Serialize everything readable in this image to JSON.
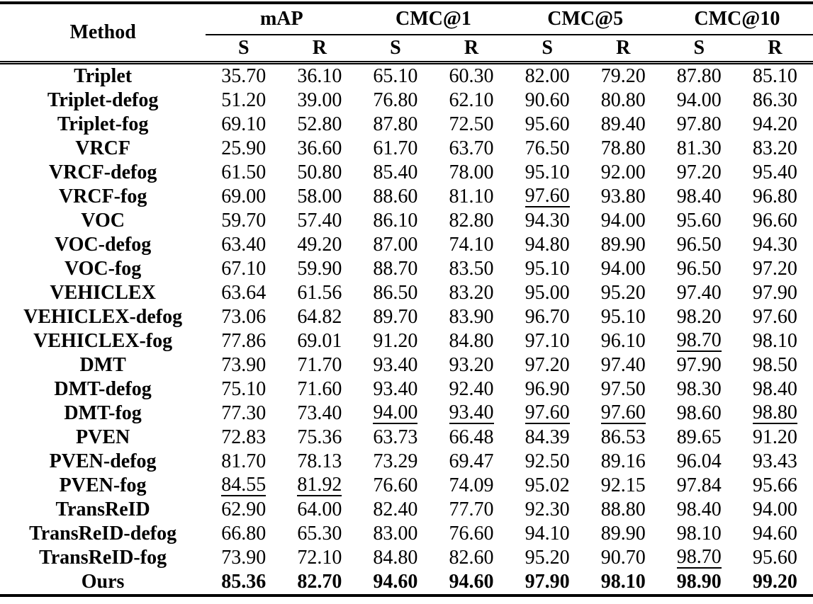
{
  "table": {
    "method_header": "Method",
    "groups": [
      {
        "label": "mAP"
      },
      {
        "label": "CMC@1"
      },
      {
        "label": "CMC@5"
      },
      {
        "label": "CMC@10"
      }
    ],
    "subheaders": [
      "S",
      "R",
      "S",
      "R",
      "S",
      "R",
      "S",
      "R"
    ],
    "rows": [
      {
        "method": "Triplet",
        "values": [
          "35.70",
          "36.10",
          "65.10",
          "60.30",
          "82.00",
          "79.20",
          "87.80",
          "85.10"
        ],
        "bold": false,
        "underline": []
      },
      {
        "method": "Triplet-defog",
        "values": [
          "51.20",
          "39.00",
          "76.80",
          "62.10",
          "90.60",
          "80.80",
          "94.00",
          "86.30"
        ],
        "bold": false,
        "underline": []
      },
      {
        "method": "Triplet-fog",
        "values": [
          "69.10",
          "52.80",
          "87.80",
          "72.50",
          "95.60",
          "89.40",
          "97.80",
          "94.20"
        ],
        "bold": false,
        "underline": []
      },
      {
        "method": "VRCF",
        "values": [
          "25.90",
          "36.60",
          "61.70",
          "63.70",
          "76.50",
          "78.80",
          "81.30",
          "83.20"
        ],
        "bold": false,
        "underline": []
      },
      {
        "method": "VRCF-defog",
        "values": [
          "61.50",
          "50.80",
          "85.40",
          "78.00",
          "95.10",
          "92.00",
          "97.20",
          "95.40"
        ],
        "bold": false,
        "underline": []
      },
      {
        "method": "VRCF-fog",
        "values": [
          "69.00",
          "58.00",
          "88.60",
          "81.10",
          "97.60",
          "93.80",
          "98.40",
          "96.80"
        ],
        "bold": false,
        "underline": [
          4
        ]
      },
      {
        "method": "VOC",
        "values": [
          "59.70",
          "57.40",
          "86.10",
          "82.80",
          "94.30",
          "94.00",
          "95.60",
          "96.60"
        ],
        "bold": false,
        "underline": []
      },
      {
        "method": "VOC-defog",
        "values": [
          "63.40",
          "49.20",
          "87.00",
          "74.10",
          "94.80",
          "89.90",
          "96.50",
          "94.30"
        ],
        "bold": false,
        "underline": []
      },
      {
        "method": "VOC-fog",
        "values": [
          "67.10",
          "59.90",
          "88.70",
          "83.50",
          "95.10",
          "94.00",
          "96.50",
          "97.20"
        ],
        "bold": false,
        "underline": []
      },
      {
        "method": "VEHICLEX",
        "values": [
          "63.64",
          "61.56",
          "86.50",
          "83.20",
          "95.00",
          "95.20",
          "97.40",
          "97.90"
        ],
        "bold": false,
        "underline": []
      },
      {
        "method": "VEHICLEX-defog",
        "values": [
          "73.06",
          "64.82",
          "89.70",
          "83.90",
          "96.70",
          "95.10",
          "98.20",
          "97.60"
        ],
        "bold": false,
        "underline": []
      },
      {
        "method": "VEHICLEX-fog",
        "values": [
          "77.86",
          "69.01",
          "91.20",
          "84.80",
          "97.10",
          "96.10",
          "98.70",
          "98.10"
        ],
        "bold": false,
        "underline": [
          6
        ]
      },
      {
        "method": "DMT",
        "values": [
          "73.90",
          "71.70",
          "93.40",
          "93.20",
          "97.20",
          "97.40",
          "97.90",
          "98.50"
        ],
        "bold": false,
        "underline": []
      },
      {
        "method": "DMT-defog",
        "values": [
          "75.10",
          "71.60",
          "93.40",
          "92.40",
          "96.90",
          "97.50",
          "98.30",
          "98.40"
        ],
        "bold": false,
        "underline": []
      },
      {
        "method": "DMT-fog",
        "values": [
          "77.30",
          "73.40",
          "94.00",
          "93.40",
          "97.60",
          "97.60",
          "98.60",
          "98.80"
        ],
        "bold": false,
        "underline": [
          2,
          3,
          4,
          5,
          7
        ]
      },
      {
        "method": "PVEN",
        "values": [
          "72.83",
          "75.36",
          "63.73",
          "66.48",
          "84.39",
          "86.53",
          "89.65",
          "91.20"
        ],
        "bold": false,
        "underline": []
      },
      {
        "method": "PVEN-defog",
        "values": [
          "81.70",
          "78.13",
          "73.29",
          "69.47",
          "92.50",
          "89.16",
          "96.04",
          "93.43"
        ],
        "bold": false,
        "underline": []
      },
      {
        "method": "PVEN-fog",
        "values": [
          "84.55",
          "81.92",
          "76.60",
          "74.09",
          "95.02",
          "92.15",
          "97.84",
          "95.66"
        ],
        "bold": false,
        "underline": [
          0,
          1
        ]
      },
      {
        "method": "TransReID",
        "values": [
          "62.90",
          "64.00",
          "82.40",
          "77.70",
          "92.30",
          "88.80",
          "98.40",
          "94.00"
        ],
        "bold": false,
        "underline": []
      },
      {
        "method": "TransReID-defog",
        "values": [
          "66.80",
          "65.30",
          "83.00",
          "76.60",
          "94.10",
          "89.90",
          "98.10",
          "94.60"
        ],
        "bold": false,
        "underline": []
      },
      {
        "method": "TransReID-fog",
        "values": [
          "73.90",
          "72.10",
          "84.80",
          "82.60",
          "95.20",
          "90.70",
          "98.70",
          "95.60"
        ],
        "bold": false,
        "underline": [
          6
        ]
      },
      {
        "method": "Ours",
        "values": [
          "85.36",
          "82.70",
          "94.60",
          "94.60",
          "97.90",
          "98.10",
          "98.90",
          "99.20"
        ],
        "bold": true,
        "underline": []
      }
    ]
  }
}
